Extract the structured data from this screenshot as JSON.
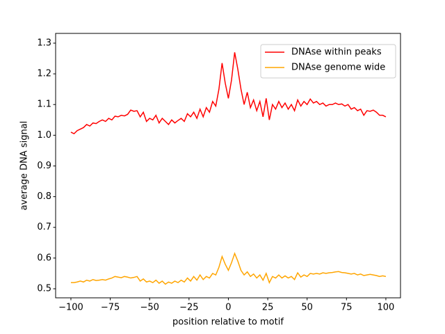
{
  "chart_data": {
    "type": "line",
    "xlabel": "position relative to motif",
    "ylabel": "average DNA signal",
    "x": [
      -100,
      -98,
      -96,
      -94,
      -92,
      -90,
      -88,
      -86,
      -84,
      -82,
      -80,
      -78,
      -76,
      -74,
      -72,
      -70,
      -68,
      -66,
      -64,
      -62,
      -60,
      -58,
      -56,
      -54,
      -52,
      -50,
      -48,
      -46,
      -44,
      -42,
      -40,
      -38,
      -36,
      -34,
      -32,
      -30,
      -28,
      -26,
      -24,
      -22,
      -20,
      -18,
      -16,
      -14,
      -12,
      -10,
      -8,
      -6,
      -4,
      -2,
      0,
      2,
      4,
      6,
      8,
      10,
      12,
      14,
      16,
      18,
      20,
      22,
      24,
      26,
      28,
      30,
      32,
      34,
      36,
      38,
      40,
      42,
      44,
      46,
      48,
      50,
      52,
      54,
      56,
      58,
      60,
      62,
      64,
      66,
      68,
      70,
      72,
      74,
      76,
      78,
      80,
      82,
      84,
      86,
      88,
      90,
      92,
      94,
      96,
      98,
      100
    ],
    "series": [
      {
        "name": "DNAse within peaks",
        "color": "#ff0000",
        "values": [
          1.01,
          1.005,
          1.015,
          1.02,
          1.025,
          1.035,
          1.03,
          1.04,
          1.038,
          1.045,
          1.05,
          1.045,
          1.055,
          1.05,
          1.062,
          1.06,
          1.065,
          1.063,
          1.068,
          1.082,
          1.078,
          1.08,
          1.06,
          1.075,
          1.045,
          1.055,
          1.05,
          1.065,
          1.04,
          1.055,
          1.045,
          1.035,
          1.05,
          1.04,
          1.048,
          1.055,
          1.045,
          1.07,
          1.06,
          1.075,
          1.055,
          1.085,
          1.06,
          1.09,
          1.075,
          1.11,
          1.095,
          1.15,
          1.235,
          1.17,
          1.12,
          1.18,
          1.27,
          1.215,
          1.15,
          1.1,
          1.14,
          1.09,
          1.115,
          1.08,
          1.11,
          1.06,
          1.12,
          1.05,
          1.1,
          1.085,
          1.11,
          1.09,
          1.105,
          1.085,
          1.1,
          1.08,
          1.115,
          1.095,
          1.11,
          1.1,
          1.118,
          1.105,
          1.11,
          1.1,
          1.105,
          1.095,
          1.1,
          1.1,
          1.105,
          1.1,
          1.102,
          1.095,
          1.1,
          1.085,
          1.09,
          1.08,
          1.085,
          1.065,
          1.08,
          1.078,
          1.082,
          1.075,
          1.065,
          1.065,
          1.06
        ]
      },
      {
        "name": "DNAse genome wide",
        "color": "#ffa500",
        "values": [
          0.52,
          0.52,
          0.522,
          0.525,
          0.522,
          0.528,
          0.525,
          0.53,
          0.527,
          0.528,
          0.53,
          0.528,
          0.532,
          0.535,
          0.54,
          0.538,
          0.536,
          0.54,
          0.538,
          0.535,
          0.537,
          0.54,
          0.525,
          0.532,
          0.522,
          0.525,
          0.52,
          0.528,
          0.518,
          0.525,
          0.515,
          0.522,
          0.518,
          0.525,
          0.52,
          0.528,
          0.522,
          0.535,
          0.525,
          0.54,
          0.528,
          0.545,
          0.53,
          0.54,
          0.535,
          0.55,
          0.545,
          0.57,
          0.605,
          0.58,
          0.56,
          0.585,
          0.615,
          0.59,
          0.56,
          0.545,
          0.555,
          0.54,
          0.548,
          0.535,
          0.545,
          0.528,
          0.55,
          0.52,
          0.54,
          0.535,
          0.545,
          0.535,
          0.542,
          0.535,
          0.54,
          0.53,
          0.552,
          0.538,
          0.545,
          0.54,
          0.55,
          0.548,
          0.55,
          0.548,
          0.552,
          0.55,
          0.552,
          0.553,
          0.555,
          0.556,
          0.553,
          0.552,
          0.55,
          0.548,
          0.55,
          0.545,
          0.548,
          0.543,
          0.545,
          0.547,
          0.545,
          0.543,
          0.54,
          0.542,
          0.54
        ]
      }
    ],
    "xlim": [
      -109.7,
      109.3
    ],
    "xticks": [
      {
        "value": -100,
        "label": "−100"
      },
      {
        "value": -75,
        "label": "−75"
      },
      {
        "value": -50,
        "label": "−50"
      },
      {
        "value": -25,
        "label": "−25"
      },
      0,
      25,
      50,
      75,
      100
    ],
    "ylim": [
      0.4705,
      1.3317
    ],
    "yticks": [
      0.5,
      0.6,
      0.7,
      0.8,
      0.9,
      {
        "value": 1,
        "label": "1.0"
      },
      1.1,
      1.2,
      1.3
    ],
    "legend": "upper right"
  }
}
